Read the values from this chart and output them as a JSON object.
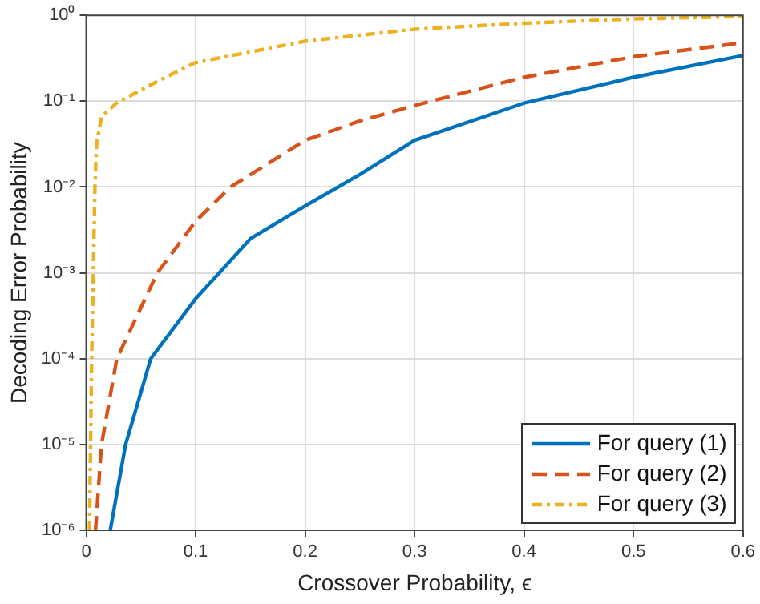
{
  "chart_data": {
    "type": "line",
    "xlabel": "Crossover Probability, ϵ",
    "ylabel": "Decoding Error Probability",
    "log": "y",
    "grid": true,
    "legend": "bottom right",
    "marker": "none",
    "xlim": [
      0,
      0.6
    ],
    "xticks": [
      0,
      0.1,
      0.2,
      0.3,
      0.4,
      0.5,
      0.6
    ],
    "ylim": [
      1e-06,
      1
    ],
    "yticks": [
      {
        "value": 1e-06,
        "label": "10⁻⁶"
      },
      {
        "value": 1e-05,
        "label": "10⁻⁵"
      },
      {
        "value": 0.0001,
        "label": "10⁻⁴"
      },
      {
        "value": 0.001,
        "label": "10⁻³"
      },
      {
        "value": 0.01,
        "label": "10⁻²"
      },
      {
        "value": 0.1,
        "label": "10⁻¹"
      },
      {
        "value": 1,
        "label": "10⁰"
      }
    ],
    "series": [
      {
        "name": "For query (1)",
        "color": "#0072bd",
        "line_style": "solid",
        "x": [
          0.022,
          0.036,
          0.059,
          0.1,
          0.15,
          0.2,
          0.25,
          0.3,
          0.4,
          0.5,
          0.6
        ],
        "values": [
          1e-06,
          1e-05,
          0.0001,
          0.0005,
          0.0025,
          0.006,
          0.014,
          0.035,
          0.095,
          0.19,
          0.34
        ]
      },
      {
        "name": "For query (2)",
        "color": "#d95319",
        "line_style": "dashed",
        "x": [
          0.0085,
          0.014,
          0.028,
          0.065,
          0.1,
          0.132,
          0.2,
          0.25,
          0.3,
          0.4,
          0.5,
          0.6
        ],
        "values": [
          1e-06,
          1e-05,
          0.0001,
          0.001,
          0.004,
          0.01,
          0.035,
          0.059,
          0.089,
          0.19,
          0.33,
          0.48
        ]
      },
      {
        "name": "For query (3)",
        "color": "#edb120",
        "line_style": "dotted",
        "x": [
          0.003,
          0.005,
          0.008,
          0.0095,
          0.014,
          0.028,
          0.061,
          0.099,
          0.2,
          0.3,
          0.4,
          0.5,
          0.6
        ],
        "values": [
          1e-06,
          0.0001,
          0.01,
          0.032,
          0.066,
          0.096,
          0.16,
          0.28,
          0.5,
          0.69,
          0.81,
          0.91,
          0.97
        ]
      }
    ]
  }
}
